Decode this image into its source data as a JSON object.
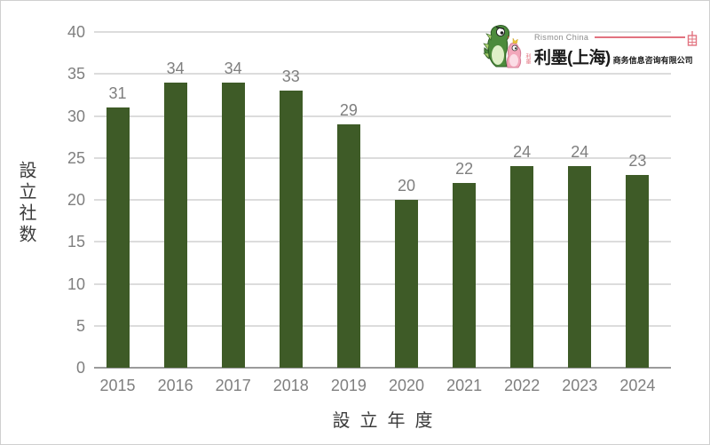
{
  "chart_data": {
    "type": "bar",
    "title": "",
    "categories": [
      "2015",
      "2016",
      "2017",
      "2018",
      "2019",
      "2020",
      "2021",
      "2022",
      "2023",
      "2024"
    ],
    "values": [
      31,
      34,
      34,
      33,
      29,
      20,
      22,
      24,
      24,
      23
    ],
    "xlabel": "設立年度",
    "ylabel": "設立社数",
    "ylim": [
      0,
      40
    ],
    "ytick_step": 5,
    "grid": "horizontal",
    "legend": "none",
    "bar_color": "#3e5b27",
    "tick_label_color": "#7f7f7f",
    "axis_title_color": "#3b3b3b"
  },
  "logo": {
    "brand_small": "Rismon China",
    "brand_main": "利墨(上海)",
    "brand_sub": "商务信息咨询有限公司",
    "mascot": "green-and-pink-dinosaur",
    "mascot_signature": "利墨",
    "accent_color": "#e2737f"
  }
}
